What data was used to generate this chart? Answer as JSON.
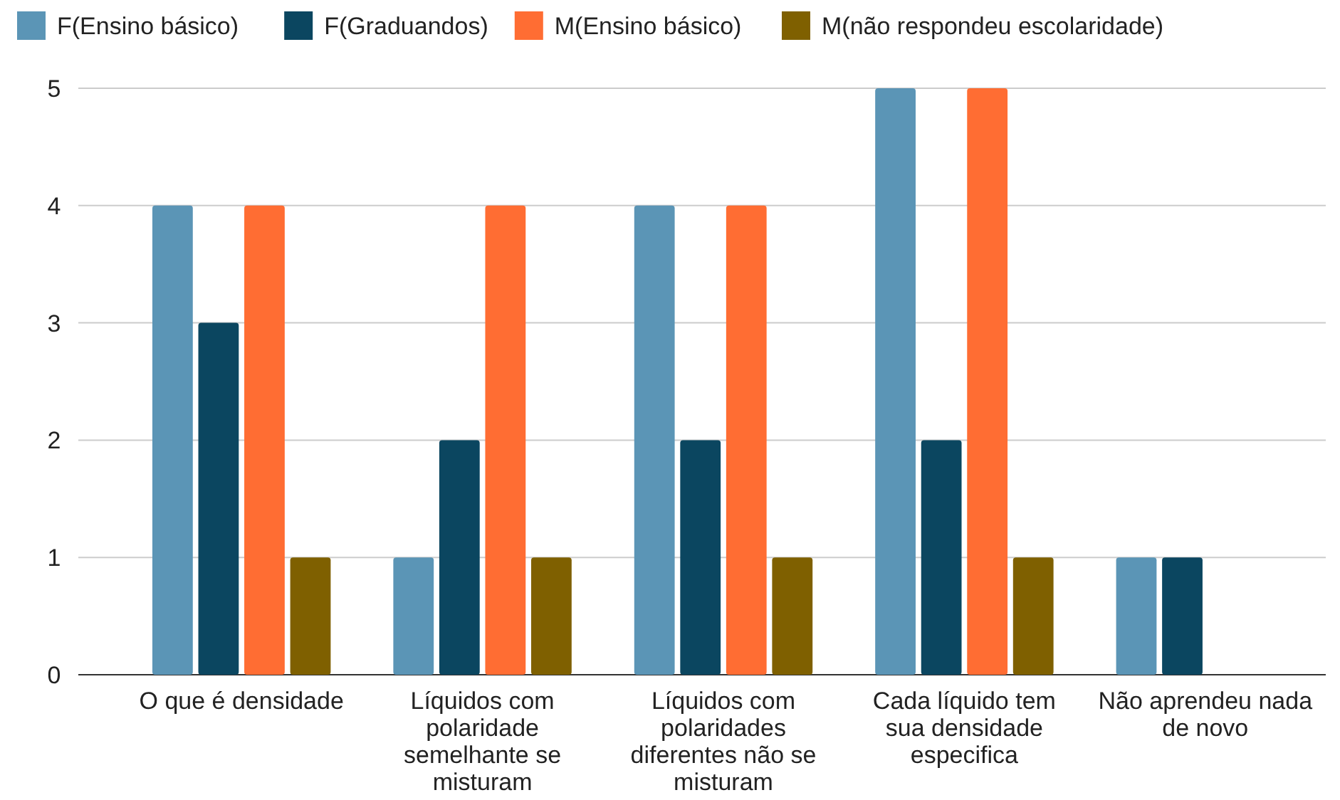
{
  "chart_data": {
    "type": "bar",
    "categories": [
      "O que é densidade",
      "Líquidos com polaridade semelhante se misturam",
      "Líquidos com polaridades diferentes não se misturam",
      "Cada líquido tem sua densidade especifica",
      "Não aprendeu nada de novo"
    ],
    "series": [
      {
        "name": "F(Ensino básico)",
        "color": "#5b95b6",
        "values": [
          4,
          1,
          4,
          5,
          1
        ]
      },
      {
        "name": "F(Graduandos)",
        "color": "#0b4660",
        "values": [
          3,
          2,
          2,
          2,
          1
        ]
      },
      {
        "name": "M(Ensino básico)",
        "color": "#ff6d33",
        "values": [
          4,
          4,
          4,
          5,
          0
        ]
      },
      {
        "name": "M(não respondeu escolaridade)",
        "color": "#7f6000",
        "values": [
          1,
          1,
          1,
          1,
          0
        ]
      }
    ],
    "ylim": [
      0,
      5
    ],
    "yticks": [
      0,
      1,
      2,
      3,
      4,
      5
    ],
    "grid": "y",
    "legend": "top"
  }
}
